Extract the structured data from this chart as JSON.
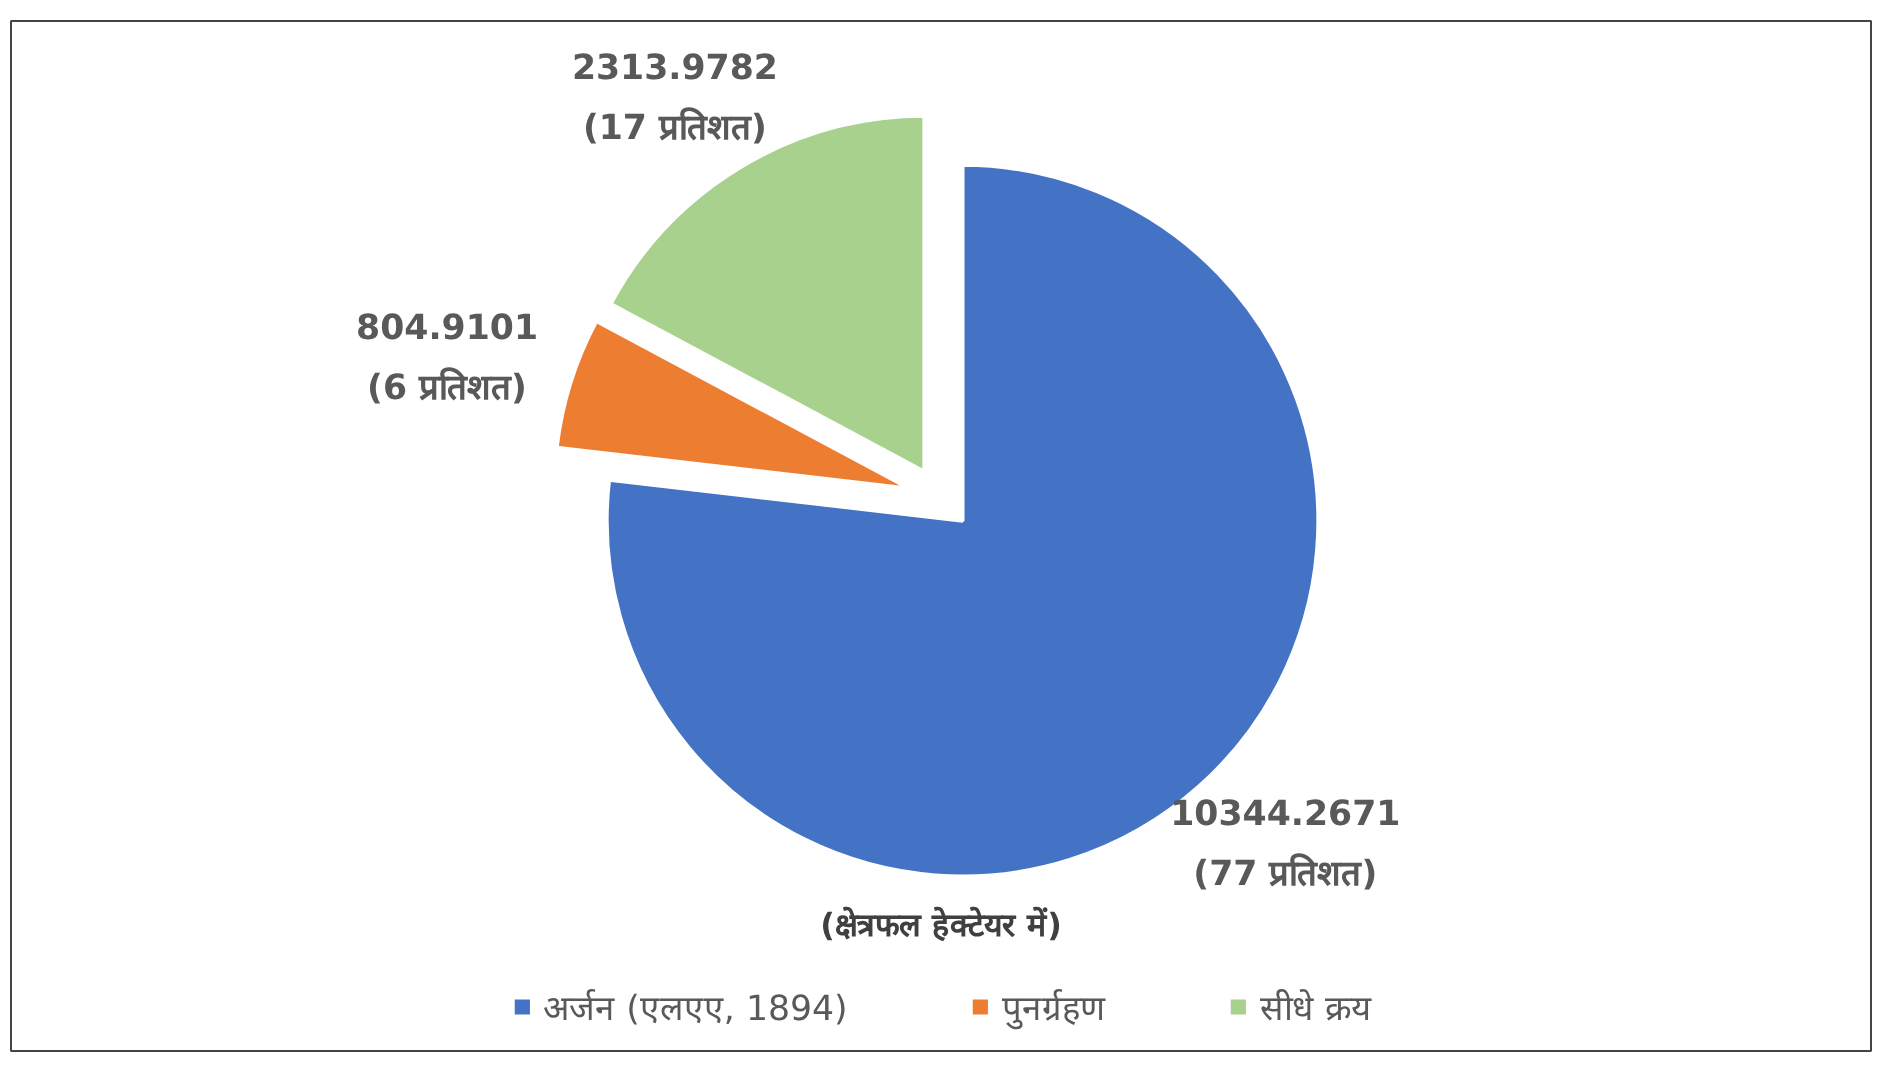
{
  "chart_data": {
    "type": "pie",
    "categories": [
      "अर्जन (एलएए, 1894)",
      "पुनर्ग्रहण",
      "सीधे क्रय"
    ],
    "values": [
      10344.2671,
      804.9101,
      2313.9782
    ],
    "colors": [
      "#4472c4",
      "#ed7d31",
      "#a9d18e"
    ],
    "value_labels": [
      "10344.2671\n(77 प्रतिशत)",
      "804.9101\n(6 प्रतिशत)",
      "2313.9782\n(17 प्रतिशत)"
    ],
    "annotations": [
      "(क्षेत्रफल हेक्टेयर में)"
    ],
    "legend": "bottom"
  }
}
